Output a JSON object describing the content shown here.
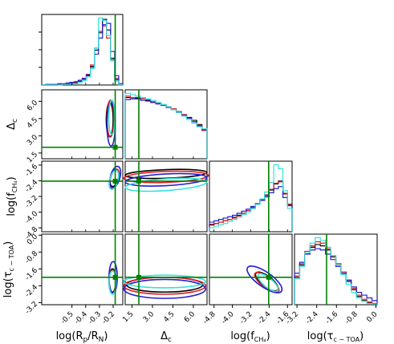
{
  "chart_data": {
    "type": "corner",
    "parameters": [
      {
        "key": "rp",
        "range": [
          -0.72,
          -0.13
        ],
        "ticks": [
          "-0.5",
          "-0.4",
          "-0.3",
          "-0.2"
        ],
        "tick_values": [
          -0.5,
          -0.4,
          -0.3,
          -0.2
        ],
        "truth": -0.185
      },
      {
        "key": "dc",
        "range": [
          1.0,
          7.0
        ],
        "ticks": [
          "1.5",
          "3.0",
          "4.5",
          "6.0"
        ],
        "tick_values": [
          1.5,
          3.0,
          4.5,
          6.0
        ],
        "truth": 2.0
      },
      {
        "key": "fch4",
        "range": [
          -5.0,
          -1.4
        ],
        "ticks": [
          "-4.8",
          "-4.0",
          "-3.2",
          "-2.4",
          "-1.6"
        ],
        "tick_values": [
          -4.8,
          -4.0,
          -3.2,
          -2.4,
          -1.6
        ],
        "truth": -2.42
      },
      {
        "key": "tau",
        "range": [
          -3.3,
          0.05
        ],
        "ticks": [
          "-3.2",
          "-2.4",
          "-1.6",
          "-0.8",
          "0.0"
        ],
        "tick_values": [
          -3.2,
          -2.4,
          -1.6,
          -0.8,
          0.0
        ],
        "truth": -2.0
      }
    ],
    "axis_labels": {
      "x": [
        "log(Rₚ/Rₙ)",
        "Δc",
        "log(fCH₄)",
        "log(τc − TOA)"
      ],
      "y": [
        "",
        "Δc",
        "log(fCH₄)",
        "log(τc − TOA)"
      ]
    },
    "series": [
      {
        "color": "#000000"
      },
      {
        "color": "#e41a1c"
      },
      {
        "color": "#1f1fd6"
      },
      {
        "color": "#36e2dc"
      }
    ],
    "truth_color": "#008000",
    "marginals": {
      "rp": [
        [
          0,
          0,
          0,
          0,
          1,
          1,
          1,
          2,
          3,
          5,
          8,
          14,
          28,
          52,
          78,
          98,
          82,
          40,
          8,
          0
        ],
        [
          0,
          0,
          0,
          0,
          1,
          1,
          2,
          2,
          4,
          6,
          9,
          16,
          30,
          55,
          80,
          88,
          70,
          38,
          10,
          0
        ],
        [
          0,
          1,
          1,
          1,
          2,
          2,
          3,
          4,
          5,
          7,
          10,
          15,
          26,
          46,
          70,
          90,
          92,
          50,
          14,
          2
        ],
        [
          0,
          0,
          0,
          0,
          0,
          1,
          1,
          1,
          2,
          4,
          7,
          12,
          25,
          55,
          100,
          96,
          74,
          36,
          6,
          0
        ]
      ],
      "dc": [
        [
          86,
          86,
          85,
          84,
          82,
          80,
          78,
          76,
          73,
          70,
          66,
          62,
          58,
          54,
          48,
          40
        ],
        [
          88,
          86,
          86,
          84,
          83,
          80,
          78,
          75,
          73,
          70,
          66,
          62,
          57,
          52,
          47,
          40
        ],
        [
          83,
          84,
          84,
          82,
          81,
          79,
          77,
          75,
          72,
          69,
          65,
          61,
          57,
          52,
          46,
          41
        ],
        [
          92,
          90,
          88,
          86,
          84,
          82,
          79,
          76,
          73,
          69,
          65,
          60,
          55,
          50,
          45,
          42
        ]
      ],
      "fch4": [
        [
          10,
          12,
          14,
          16,
          18,
          21,
          24,
          27,
          31,
          35,
          40,
          46,
          53,
          61,
          70,
          74,
          56,
          40
        ],
        [
          11,
          12,
          14,
          16,
          18,
          20,
          23,
          27,
          31,
          36,
          41,
          47,
          54,
          62,
          71,
          73,
          55,
          39
        ],
        [
          14,
          16,
          18,
          20,
          22,
          24,
          27,
          30,
          33,
          37,
          41,
          46,
          51,
          57,
          63,
          66,
          50,
          38
        ],
        [
          6,
          8,
          10,
          12,
          15,
          18,
          21,
          25,
          29,
          34,
          40,
          48,
          58,
          72,
          98,
          92,
          60,
          34
        ]
      ],
      "tau": [
        [
          40,
          58,
          74,
          84,
          88,
          86,
          80,
          70,
          58,
          46,
          34,
          22,
          12,
          6,
          3,
          1
        ],
        [
          42,
          60,
          78,
          86,
          92,
          90,
          82,
          72,
          60,
          48,
          36,
          24,
          14,
          8,
          4,
          2
        ],
        [
          46,
          62,
          74,
          80,
          82,
          80,
          74,
          66,
          56,
          46,
          36,
          26,
          18,
          14,
          10,
          6
        ],
        [
          38,
          56,
          76,
          90,
          98,
          94,
          84,
          72,
          58,
          44,
          30,
          18,
          10,
          5,
          2,
          1
        ]
      ]
    }
  }
}
